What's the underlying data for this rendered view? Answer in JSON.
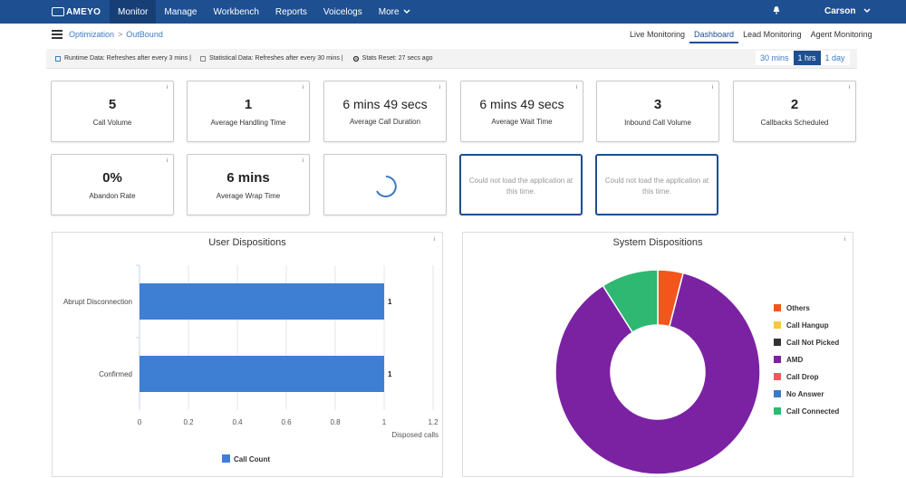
{
  "nav": {
    "logo_text": "AMEYO",
    "items": [
      "Monitor",
      "Manage",
      "Workbench",
      "Reports",
      "Voicelogs",
      "More"
    ],
    "user": "Carson"
  },
  "breadcrumb": {
    "first": "Optimization",
    "second": "OutBound"
  },
  "subtabs": [
    "Live Monitoring",
    "Dashboard",
    "Lead Monitoring",
    "Agent Monitoring"
  ],
  "infobar": {
    "runtime": "Runtime Data: Refreshes after every 3 mins |",
    "statistical": "Statistical Data: Refreshes after every 30 mins |",
    "stats_reset": "Stats Reset: 27 secs ago"
  },
  "time_buttons": [
    "30 mins",
    "1 hrs",
    "1 day"
  ],
  "info_glyph": "i",
  "cards": [
    {
      "value": "5",
      "label": "Call Volume"
    },
    {
      "value": "1",
      "label": "Average Handling Time"
    },
    {
      "value": "6 mins 49 secs",
      "label": "Average Call Duration"
    },
    {
      "value": "6 mins 49 secs",
      "label": "Average Wait Time"
    },
    {
      "value": "3",
      "label": "Inbound Call Volume"
    },
    {
      "value": "2",
      "label": "Callbacks Scheduled"
    },
    {
      "value": "0%",
      "label": "Abandon Rate"
    },
    {
      "value": "6 mins",
      "label": "Average Wrap Time"
    }
  ],
  "error_msg": "Could not load the application at this time.",
  "user_dispositions": {
    "title": "User Dispositions",
    "xlabel": "Disposed calls",
    "legend": "Call Count"
  },
  "system_dispositions": {
    "title": "System Dispositions"
  },
  "colors": {
    "brand": "#1d4f91",
    "bar": "#3e7fd4",
    "others": "#f2561d",
    "call_hangup": "#f7c843",
    "call_not_picked": "#333333",
    "amd": "#7b22a3",
    "call_drop": "#f15a5a",
    "no_answer": "#3b7bc4",
    "call_connected": "#2eb872"
  },
  "chart_data": [
    {
      "type": "bar",
      "orientation": "horizontal",
      "title": "User Dispositions",
      "xlabel": "Disposed calls",
      "categories": [
        "Abrupt Disconnection",
        "Confirmed"
      ],
      "series": [
        {
          "name": "Call Count",
          "values": [
            1,
            1
          ]
        }
      ],
      "xlim": [
        0,
        1.2
      ],
      "xticks": [
        "0",
        "0.2",
        "0.4",
        "0.6",
        "0.8",
        "1",
        "1.2"
      ],
      "data_labels": [
        "1",
        "1"
      ],
      "grid": true,
      "legend": "bottom"
    },
    {
      "type": "pie",
      "title": "System Dispositions",
      "donut": true,
      "labels": [
        "Others",
        "Call Hangup",
        "Call Not Picked",
        "AMD",
        "Call Drop",
        "No Answer",
        "Call Connected"
      ],
      "values": [
        0.04,
        0,
        0,
        0.87,
        0,
        0,
        0.09
      ],
      "legend": "right"
    }
  ]
}
